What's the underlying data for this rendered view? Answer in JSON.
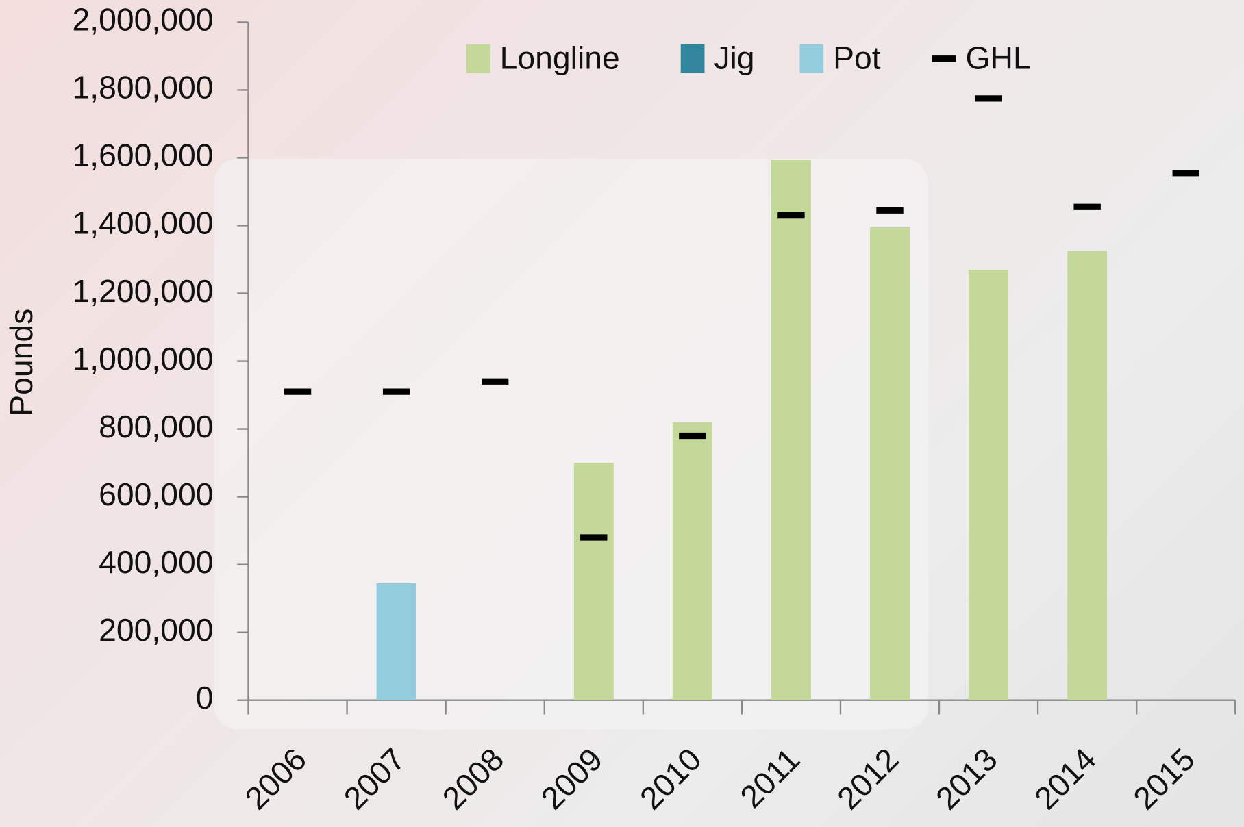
{
  "chart_data": {
    "type": "bar",
    "y_label": "Pounds",
    "categories": [
      "2006",
      "2007",
      "2008",
      "2009",
      "2010",
      "2011",
      "2012",
      "2013",
      "2014",
      "2015"
    ],
    "series": [
      {
        "name": "Longline",
        "color": "#c4d89a",
        "values": [
          0,
          0,
          0,
          700000,
          820000,
          1595000,
          1395000,
          1270000,
          1325000,
          0
        ]
      },
      {
        "name": "Jig",
        "color": "#31859c",
        "values": [
          0,
          0,
          0,
          0,
          0,
          0,
          0,
          0,
          0,
          0
        ]
      },
      {
        "name": "Pot",
        "color": "#93cddd",
        "values": [
          0,
          345000,
          0,
          0,
          0,
          0,
          0,
          0,
          0,
          0
        ]
      },
      {
        "name": "GHL",
        "color": "#000000",
        "marker": "dash",
        "values": [
          910000,
          910000,
          940000,
          480000,
          780000,
          1430000,
          1445000,
          1775000,
          1455000,
          1555000
        ]
      }
    ],
    "ylim": [
      0,
      2000000
    ],
    "yticks": [
      0,
      {
        "value": 200000,
        "label": "200,000"
      },
      {
        "value": 400000,
        "label": "400,000"
      },
      {
        "value": 600000,
        "label": "600,000"
      },
      {
        "value": 800000,
        "label": "800,000"
      },
      {
        "value": 1000000,
        "label": "1,000,000"
      },
      {
        "value": 1200000,
        "label": "1,200,000"
      },
      {
        "value": 1400000,
        "label": "1,400,000"
      },
      {
        "value": 1600000,
        "label": "1,600,000"
      },
      {
        "value": 1800000,
        "label": "1,800,000"
      },
      {
        "value": 2000000,
        "label": "2,000,000"
      }
    ],
    "grid": false,
    "legend": "top"
  }
}
